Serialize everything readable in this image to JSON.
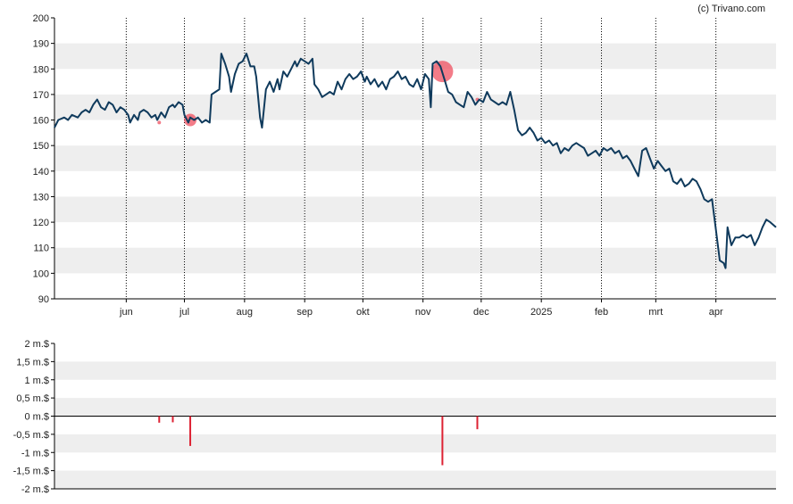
{
  "credit": "(c) Trivano.com",
  "chart_data": [
    {
      "type": "line",
      "title": "",
      "xlabel": "",
      "ylabel": "",
      "ylim": [
        90,
        200
      ],
      "yticks": [
        90,
        100,
        110,
        120,
        130,
        140,
        150,
        160,
        170,
        180,
        190,
        200
      ],
      "grid": "alternating horizontal bands, dotted vertical month lines",
      "x_ticks": [
        {
          "label": "jun",
          "date": "2024-06-01"
        },
        {
          "label": "jul",
          "date": "2024-07-01"
        },
        {
          "label": "aug",
          "date": "2024-08-01"
        },
        {
          "label": "sep",
          "date": "2024-09-01"
        },
        {
          "label": "okt",
          "date": "2024-10-01"
        },
        {
          "label": "nov",
          "date": "2024-11-01"
        },
        {
          "label": "dec",
          "date": "2024-12-01"
        },
        {
          "label": "2025",
          "date": "2025-01-01"
        },
        {
          "label": "feb",
          "date": "2025-02-01"
        },
        {
          "label": "mrt",
          "date": "2025-03-01"
        },
        {
          "label": "apr",
          "date": "2025-04-01"
        }
      ],
      "xlim": [
        "2024-04-25",
        "2025-05-02"
      ],
      "line_color": "#0f3a5c",
      "series": [
        {
          "points": [
            [
              "2024-04-25",
              157
            ],
            [
              "2024-04-27",
              160
            ],
            [
              "2024-04-30",
              161
            ],
            [
              "2024-05-02",
              160
            ],
            [
              "2024-05-04",
              162
            ],
            [
              "2024-05-07",
              161
            ],
            [
              "2024-05-09",
              163
            ],
            [
              "2024-05-11",
              164
            ],
            [
              "2024-05-13",
              163
            ],
            [
              "2024-05-15",
              166
            ],
            [
              "2024-05-17",
              168
            ],
            [
              "2024-05-19",
              165
            ],
            [
              "2024-05-21",
              164
            ],
            [
              "2024-05-23",
              167
            ],
            [
              "2024-05-25",
              166
            ],
            [
              "2024-05-27",
              163
            ],
            [
              "2024-05-29",
              165
            ],
            [
              "2024-05-31",
              164
            ],
            [
              "2024-06-02",
              162
            ],
            [
              "2024-06-03",
              159
            ],
            [
              "2024-06-05",
              162
            ],
            [
              "2024-06-07",
              160
            ],
            [
              "2024-06-08",
              163
            ],
            [
              "2024-06-10",
              164
            ],
            [
              "2024-06-12",
              163
            ],
            [
              "2024-06-14",
              161
            ],
            [
              "2024-06-16",
              162
            ],
            [
              "2024-06-17",
              160
            ],
            [
              "2024-06-19",
              163
            ],
            [
              "2024-06-21",
              161
            ],
            [
              "2024-06-23",
              165
            ],
            [
              "2024-06-25",
              166
            ],
            [
              "2024-06-26",
              165
            ],
            [
              "2024-06-28",
              167
            ],
            [
              "2024-06-30",
              166
            ],
            [
              "2024-07-01",
              162
            ],
            [
              "2024-07-03",
              159
            ],
            [
              "2024-07-04",
              161
            ],
            [
              "2024-07-06",
              160
            ],
            [
              "2024-07-08",
              161
            ],
            [
              "2024-07-10",
              159
            ],
            [
              "2024-07-12",
              160
            ],
            [
              "2024-07-14",
              159
            ],
            [
              "2024-07-15",
              170
            ],
            [
              "2024-07-17",
              171
            ],
            [
              "2024-07-19",
              172
            ],
            [
              "2024-07-20",
              186
            ],
            [
              "2024-07-22",
              182
            ],
            [
              "2024-07-24",
              177
            ],
            [
              "2024-07-25",
              171
            ],
            [
              "2024-07-27",
              178
            ],
            [
              "2024-07-29",
              182
            ],
            [
              "2024-07-31",
              183
            ],
            [
              "2024-08-02",
              186
            ],
            [
              "2024-08-04",
              181
            ],
            [
              "2024-08-06",
              181
            ],
            [
              "2024-08-07",
              177
            ],
            [
              "2024-08-09",
              161
            ],
            [
              "2024-08-10",
              157
            ],
            [
              "2024-08-12",
              172
            ],
            [
              "2024-08-14",
              175
            ],
            [
              "2024-08-16",
              171
            ],
            [
              "2024-08-18",
              176
            ],
            [
              "2024-08-19",
              172
            ],
            [
              "2024-08-21",
              179
            ],
            [
              "2024-08-23",
              177
            ],
            [
              "2024-08-25",
              180
            ],
            [
              "2024-08-27",
              183
            ],
            [
              "2024-08-28",
              181
            ],
            [
              "2024-08-30",
              184
            ],
            [
              "2024-09-01",
              183
            ],
            [
              "2024-09-03",
              182
            ],
            [
              "2024-09-05",
              184
            ],
            [
              "2024-09-06",
              174
            ],
            [
              "2024-09-08",
              172
            ],
            [
              "2024-09-10",
              169
            ],
            [
              "2024-09-12",
              170
            ],
            [
              "2024-09-14",
              171
            ],
            [
              "2024-09-16",
              170
            ],
            [
              "2024-09-18",
              175
            ],
            [
              "2024-09-20",
              172
            ],
            [
              "2024-09-22",
              176
            ],
            [
              "2024-09-24",
              178
            ],
            [
              "2024-09-26",
              176
            ],
            [
              "2024-09-28",
              177
            ],
            [
              "2024-09-30",
              179
            ],
            [
              "2024-10-02",
              175
            ],
            [
              "2024-10-03",
              177
            ],
            [
              "2024-10-05",
              174
            ],
            [
              "2024-10-07",
              176
            ],
            [
              "2024-10-09",
              173
            ],
            [
              "2024-10-11",
              175
            ],
            [
              "2024-10-13",
              172
            ],
            [
              "2024-10-15",
              176
            ],
            [
              "2024-10-17",
              177
            ],
            [
              "2024-10-19",
              179
            ],
            [
              "2024-10-21",
              176
            ],
            [
              "2024-10-23",
              177
            ],
            [
              "2024-10-25",
              174
            ],
            [
              "2024-10-27",
              173
            ],
            [
              "2024-10-29",
              176
            ],
            [
              "2024-10-31",
              172
            ],
            [
              "2024-11-02",
              178
            ],
            [
              "2024-11-04",
              176
            ],
            [
              "2024-11-05",
              165
            ],
            [
              "2024-11-06",
              182
            ],
            [
              "2024-11-08",
              183
            ],
            [
              "2024-11-10",
              181
            ],
            [
              "2024-11-12",
              176
            ],
            [
              "2024-11-14",
              171
            ],
            [
              "2024-11-16",
              170
            ],
            [
              "2024-11-18",
              167
            ],
            [
              "2024-11-20",
              166
            ],
            [
              "2024-11-22",
              165
            ],
            [
              "2024-11-24",
              171
            ],
            [
              "2024-11-26",
              169
            ],
            [
              "2024-11-28",
              166
            ],
            [
              "2024-11-30",
              168
            ],
            [
              "2024-12-02",
              167
            ],
            [
              "2024-12-04",
              171
            ],
            [
              "2024-12-06",
              168
            ],
            [
              "2024-12-08",
              167
            ],
            [
              "2024-12-10",
              166
            ],
            [
              "2024-12-12",
              167
            ],
            [
              "2024-12-14",
              166
            ],
            [
              "2024-12-16",
              171
            ],
            [
              "2024-12-18",
              164
            ],
            [
              "2024-12-20",
              156
            ],
            [
              "2024-12-22",
              154
            ],
            [
              "2024-12-24",
              155
            ],
            [
              "2024-12-26",
              157
            ],
            [
              "2024-12-28",
              155
            ],
            [
              "2024-12-30",
              152
            ],
            [
              "2025-01-01",
              153
            ],
            [
              "2025-01-03",
              151
            ],
            [
              "2025-01-05",
              152
            ],
            [
              "2025-01-07",
              150
            ],
            [
              "2025-01-09",
              151
            ],
            [
              "2025-01-11",
              147
            ],
            [
              "2025-01-13",
              149
            ],
            [
              "2025-01-15",
              148
            ],
            [
              "2025-01-17",
              150
            ],
            [
              "2025-01-19",
              151
            ],
            [
              "2025-01-21",
              150
            ],
            [
              "2025-01-23",
              149
            ],
            [
              "2025-01-25",
              146
            ],
            [
              "2025-01-27",
              147
            ],
            [
              "2025-01-29",
              148
            ],
            [
              "2025-01-31",
              146
            ],
            [
              "2025-02-02",
              149
            ],
            [
              "2025-02-04",
              148
            ],
            [
              "2025-02-06",
              149
            ],
            [
              "2025-02-08",
              147
            ],
            [
              "2025-02-10",
              148
            ],
            [
              "2025-02-12",
              145
            ],
            [
              "2025-02-14",
              146
            ],
            [
              "2025-02-16",
              144
            ],
            [
              "2025-02-18",
              141
            ],
            [
              "2025-02-20",
              138
            ],
            [
              "2025-02-22",
              148
            ],
            [
              "2025-02-24",
              149
            ],
            [
              "2025-02-26",
              145
            ],
            [
              "2025-02-28",
              141
            ],
            [
              "2025-03-02",
              144
            ],
            [
              "2025-03-04",
              142
            ],
            [
              "2025-03-06",
              140
            ],
            [
              "2025-03-08",
              141
            ],
            [
              "2025-03-10",
              136
            ],
            [
              "2025-03-12",
              135
            ],
            [
              "2025-03-14",
              137
            ],
            [
              "2025-03-16",
              134
            ],
            [
              "2025-03-18",
              135
            ],
            [
              "2025-03-20",
              137
            ],
            [
              "2025-03-22",
              136
            ],
            [
              "2025-03-24",
              133
            ],
            [
              "2025-03-26",
              129
            ],
            [
              "2025-03-28",
              128
            ],
            [
              "2025-03-30",
              129
            ],
            [
              "2025-04-01",
              117
            ],
            [
              "2025-04-03",
              105
            ],
            [
              "2025-04-05",
              104
            ],
            [
              "2025-04-06",
              102
            ],
            [
              "2025-04-07",
              118
            ],
            [
              "2025-04-09",
              111
            ],
            [
              "2025-04-11",
              114
            ],
            [
              "2025-04-13",
              114
            ],
            [
              "2025-04-15",
              115
            ],
            [
              "2025-04-17",
              114
            ],
            [
              "2025-04-19",
              115
            ],
            [
              "2025-04-21",
              111
            ],
            [
              "2025-04-23",
              114
            ],
            [
              "2025-04-25",
              118
            ],
            [
              "2025-04-27",
              121
            ],
            [
              "2025-04-29",
              120
            ],
            [
              "2025-05-02",
              118
            ]
          ]
        }
      ],
      "markers": [
        {
          "date": "2024-06-18",
          "value": 159,
          "size": "tiny"
        },
        {
          "date": "2024-07-04",
          "value": 160,
          "size": "small"
        },
        {
          "date": "2024-11-11",
          "value": 179,
          "size": "large"
        },
        {
          "date": "2024-11-29",
          "value": 168,
          "size": "tiny"
        }
      ],
      "marker_color": "#ee4455"
    },
    {
      "type": "bar",
      "title": "",
      "xlabel": "",
      "ylabel": "",
      "ylim": [
        -2,
        2
      ],
      "yticks": [
        -2,
        -1.5,
        -1,
        -0.5,
        0,
        0.5,
        1,
        1.5,
        2
      ],
      "ytick_labels": [
        "-2 m.$",
        "-1,5 m.$",
        "-1 m.$",
        "-0,5 m.$",
        "0 m.$",
        "0,5 m.$",
        "1 m.$",
        "1,5 m.$",
        "2 m.$"
      ],
      "bar_color": "#dd2233",
      "bars": [
        {
          "date": "2024-06-18",
          "value": -0.18
        },
        {
          "date": "2024-06-25",
          "value": -0.17
        },
        {
          "date": "2024-07-04",
          "value": -0.82
        },
        {
          "date": "2024-11-11",
          "value": -1.35
        },
        {
          "date": "2024-11-29",
          "value": -0.36
        }
      ]
    }
  ]
}
